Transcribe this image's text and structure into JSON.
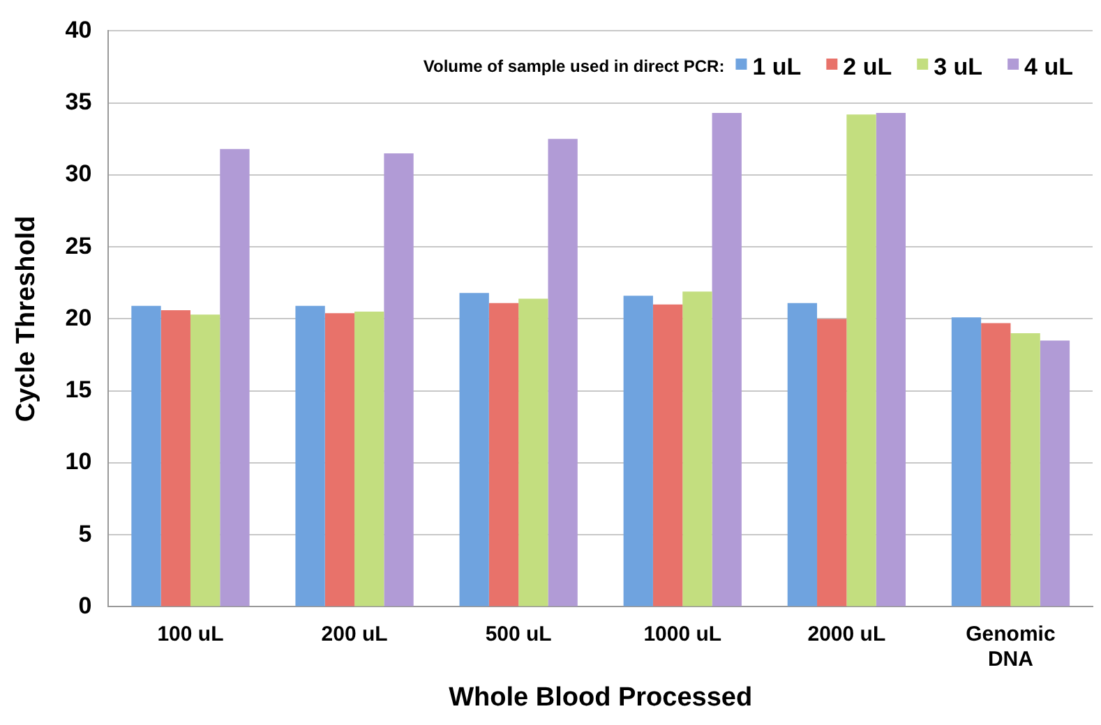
{
  "chart_data": {
    "type": "bar",
    "xlabel": "Whole Blood Processed",
    "ylabel": "Cycle Threshold",
    "legend_title": "Volume of sample used in direct PCR:",
    "categories": [
      "100 uL",
      "200 uL",
      "500 uL",
      "1000 uL",
      "2000 uL",
      "Genomic DNA"
    ],
    "series": [
      {
        "name": "1 uL",
        "color": "#6fa3df",
        "values": [
          20.9,
          20.9,
          21.8,
          21.6,
          21.1,
          20.1
        ]
      },
      {
        "name": "2 uL",
        "color": "#e8726a",
        "values": [
          20.6,
          20.4,
          21.1,
          21.0,
          20.0,
          19.7
        ]
      },
      {
        "name": "3 uL",
        "color": "#c3de7f",
        "values": [
          20.3,
          20.5,
          21.4,
          21.9,
          34.2,
          19.0
        ]
      },
      {
        "name": "4 uL",
        "color": "#b19bd6",
        "values": [
          31.8,
          31.5,
          32.5,
          34.3,
          34.3,
          18.5
        ]
      }
    ],
    "ylim": [
      0,
      40
    ],
    "yticks": [
      0,
      5,
      10,
      15,
      20,
      25,
      30,
      35,
      40
    ],
    "grid": "y",
    "legend": "top right"
  }
}
